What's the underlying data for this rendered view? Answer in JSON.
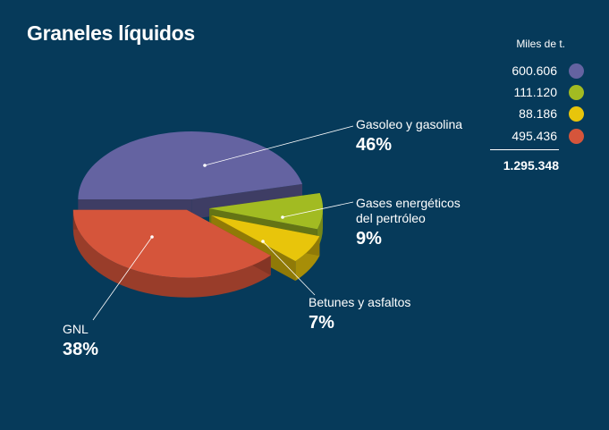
{
  "title": "Graneles líquidos",
  "legend": {
    "unit": "Miles de t.",
    "total": "1.295.348"
  },
  "chart_data": {
    "type": "pie",
    "title": "Graneles líquidos",
    "unit": "Miles de t.",
    "total": 1295348,
    "legend_placement": "top-right",
    "slices": [
      {
        "label": "Gasoleo y gasolina",
        "value": 600606,
        "display_value": "600.606",
        "percent": 46,
        "percent_label": "46%",
        "color": "#6463a1"
      },
      {
        "label": "Gases energéticos del pertróleo",
        "label_lines": [
          "Gases energéticos",
          "del pertróleo"
        ],
        "value": 111120,
        "display_value": "111.120",
        "percent": 9,
        "percent_label": "9%",
        "color": "#a2bb22"
      },
      {
        "label": "Betunes y asfaltos",
        "value": 88186,
        "display_value": "88.186",
        "percent": 7,
        "percent_label": "7%",
        "color": "#e8c50b"
      },
      {
        "label": "GNL",
        "value": 495436,
        "display_value": "495.436",
        "percent": 38,
        "percent_label": "38%",
        "color": "#d5553b"
      }
    ]
  }
}
